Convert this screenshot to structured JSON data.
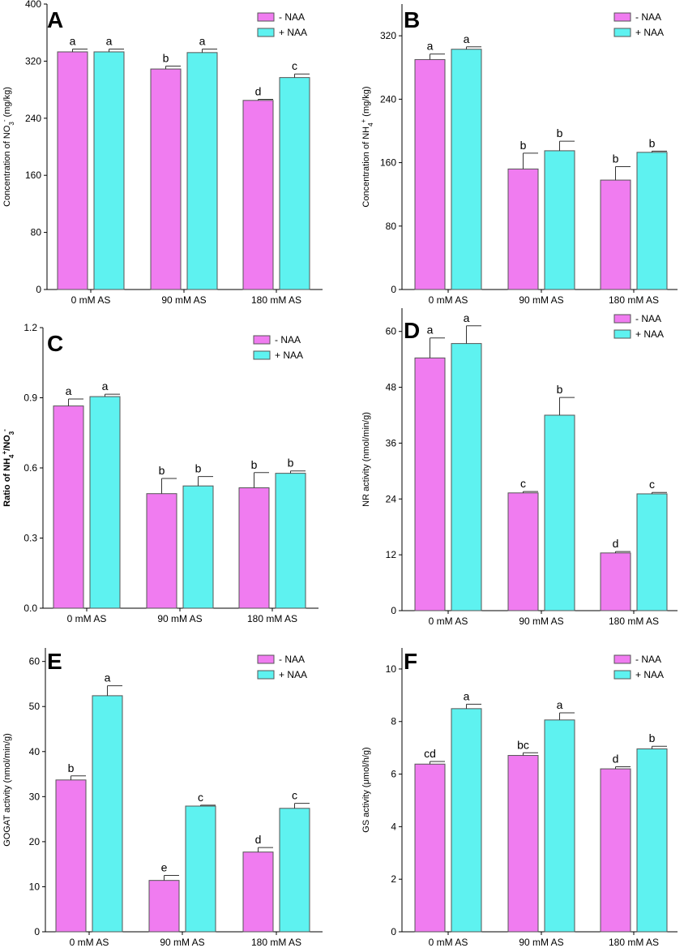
{
  "colors": {
    "minus_naa": "#f07cf0",
    "plus_naa": "#5ef2f0",
    "bar_stroke": "#555555",
    "axis": "#000000"
  },
  "chart_data": [
    {
      "panel": "A",
      "type": "bar",
      "ylabel_parts": [
        {
          "t": "Concentration of NO"
        },
        {
          "t": "3",
          "sub": true
        },
        {
          "t": "-",
          "sup": true
        },
        {
          "t": " (mg/kg)"
        }
      ],
      "ylim": [
        0,
        400
      ],
      "yticks": [
        0,
        80,
        160,
        240,
        320,
        400
      ],
      "categories": [
        "0 mM AS",
        "90 mM AS",
        "180 mM AS"
      ],
      "legend": [
        "- NAA",
        "+ NAA"
      ],
      "series": [
        {
          "name": "- NAA",
          "values": [
            333,
            309,
            265
          ],
          "errors": [
            4,
            4,
            1.5
          ],
          "letters": [
            "a",
            "b",
            "d"
          ]
        },
        {
          "name": "+ NAA",
          "values": [
            333,
            332,
            297
          ],
          "errors": [
            4,
            5,
            5
          ],
          "letters": [
            "a",
            "a",
            "c"
          ]
        }
      ]
    },
    {
      "panel": "B",
      "type": "bar",
      "ylabel_parts": [
        {
          "t": "Concentration of NH"
        },
        {
          "t": "4",
          "sub": true
        },
        {
          "t": "+",
          "sup": true
        },
        {
          "t": " (mg/kg)"
        }
      ],
      "ylim": [
        0,
        360
      ],
      "yticks": [
        0,
        80,
        160,
        240,
        320
      ],
      "categories": [
        "0 mM AS",
        "90 mM AS",
        "180 mM AS"
      ],
      "legend": [
        "- NAA",
        "+ NAA"
      ],
      "series": [
        {
          "name": "- NAA",
          "values": [
            290,
            152,
            138
          ],
          "errors": [
            7,
            20,
            17
          ],
          "letters": [
            "a",
            "b",
            "b"
          ]
        },
        {
          "name": "+ NAA",
          "values": [
            303,
            175,
            173
          ],
          "errors": [
            3,
            12,
            1.5
          ],
          "letters": [
            "a",
            "b",
            "b"
          ]
        }
      ]
    },
    {
      "panel": "C",
      "type": "bar",
      "ylabel_parts": [
        {
          "t": "Ratio of NH"
        },
        {
          "t": "4",
          "sub": true
        },
        {
          "t": "+",
          "sup": true
        },
        {
          "t": "/NO"
        },
        {
          "t": "3",
          "sub": true
        },
        {
          "t": "-",
          "sup": true
        }
      ],
      "ylabel_bold": true,
      "ylim": [
        0,
        1.2
      ],
      "yticks": [
        0.0,
        0.3,
        0.6,
        0.9,
        1.2
      ],
      "tick_decimals": 1,
      "categories": [
        "0 mM AS",
        "90 mM AS",
        "180 mM AS"
      ],
      "legend": [
        "- NAA",
        "+ NAA"
      ],
      "series": [
        {
          "name": "- NAA",
          "values": [
            0.865,
            0.49,
            0.515
          ],
          "errors": [
            0.03,
            0.065,
            0.065
          ],
          "letters": [
            "a",
            "b",
            "b"
          ]
        },
        {
          "name": "+ NAA",
          "values": [
            0.905,
            0.523,
            0.577
          ],
          "errors": [
            0.01,
            0.04,
            0.01
          ],
          "letters": [
            "a",
            "b",
            "b"
          ]
        }
      ]
    },
    {
      "panel": "D",
      "type": "bar",
      "ylabel_parts": [
        {
          "t": "NR activity (nmol/min/g)"
        }
      ],
      "ylim": [
        0,
        65
      ],
      "yticks": [
        0,
        12,
        24,
        36,
        48,
        60
      ],
      "categories": [
        "0 mM AS",
        "90 mM AS",
        "180 mM AS"
      ],
      "legend": [
        "- NAA",
        "+ NAA"
      ],
      "series": [
        {
          "name": "- NAA",
          "values": [
            54.3,
            25.3,
            12.4
          ],
          "errors": [
            4.3,
            0.3,
            0.3
          ],
          "letters": [
            "a",
            "c",
            "d"
          ]
        },
        {
          "name": "+ NAA",
          "values": [
            57.4,
            42.0,
            25.1
          ],
          "errors": [
            3.8,
            3.8,
            0.3
          ],
          "letters": [
            "a",
            "b",
            "c"
          ]
        }
      ]
    },
    {
      "panel": "E",
      "type": "bar",
      "ylabel_parts": [
        {
          "t": "GOGAT activity  (nmol/min/g)"
        }
      ],
      "ylim": [
        0,
        63
      ],
      "yticks": [
        0,
        10,
        20,
        30,
        40,
        50,
        60
      ],
      "categories": [
        "0 mM AS",
        "90 mM AS",
        "180 mM AS"
      ],
      "legend": [
        "- NAA",
        "+ NAA"
      ],
      "series": [
        {
          "name": "- NAA",
          "values": [
            33.7,
            11.4,
            17.7
          ],
          "errors": [
            0.9,
            1.1,
            1.0
          ],
          "letters": [
            "b",
            "e",
            "d"
          ]
        },
        {
          "name": "+ NAA",
          "values": [
            52.4,
            27.9,
            27.4
          ],
          "errors": [
            2.2,
            0.2,
            1.1
          ],
          "letters": [
            "a",
            "c",
            "c"
          ]
        }
      ]
    },
    {
      "panel": "F",
      "type": "bar",
      "ylabel_parts": [
        {
          "t": "GS activity  (μmol/h/g)"
        }
      ],
      "ylim": [
        0,
        10.8
      ],
      "yticks": [
        0,
        2,
        4,
        6,
        8,
        10
      ],
      "categories": [
        "0 mM AS",
        "90 mM AS",
        "180 mM AS"
      ],
      "legend": [
        "- NAA",
        "+ NAA"
      ],
      "series": [
        {
          "name": "- NAA",
          "values": [
            6.38,
            6.71,
            6.2
          ],
          "errors": [
            0.1,
            0.1,
            0.08
          ],
          "letters": [
            "cd",
            "bc",
            "d"
          ]
        },
        {
          "name": "+ NAA",
          "values": [
            8.49,
            8.06,
            6.96
          ],
          "errors": [
            0.17,
            0.27,
            0.1
          ],
          "letters": [
            "a",
            "a",
            "b"
          ]
        }
      ]
    }
  ]
}
